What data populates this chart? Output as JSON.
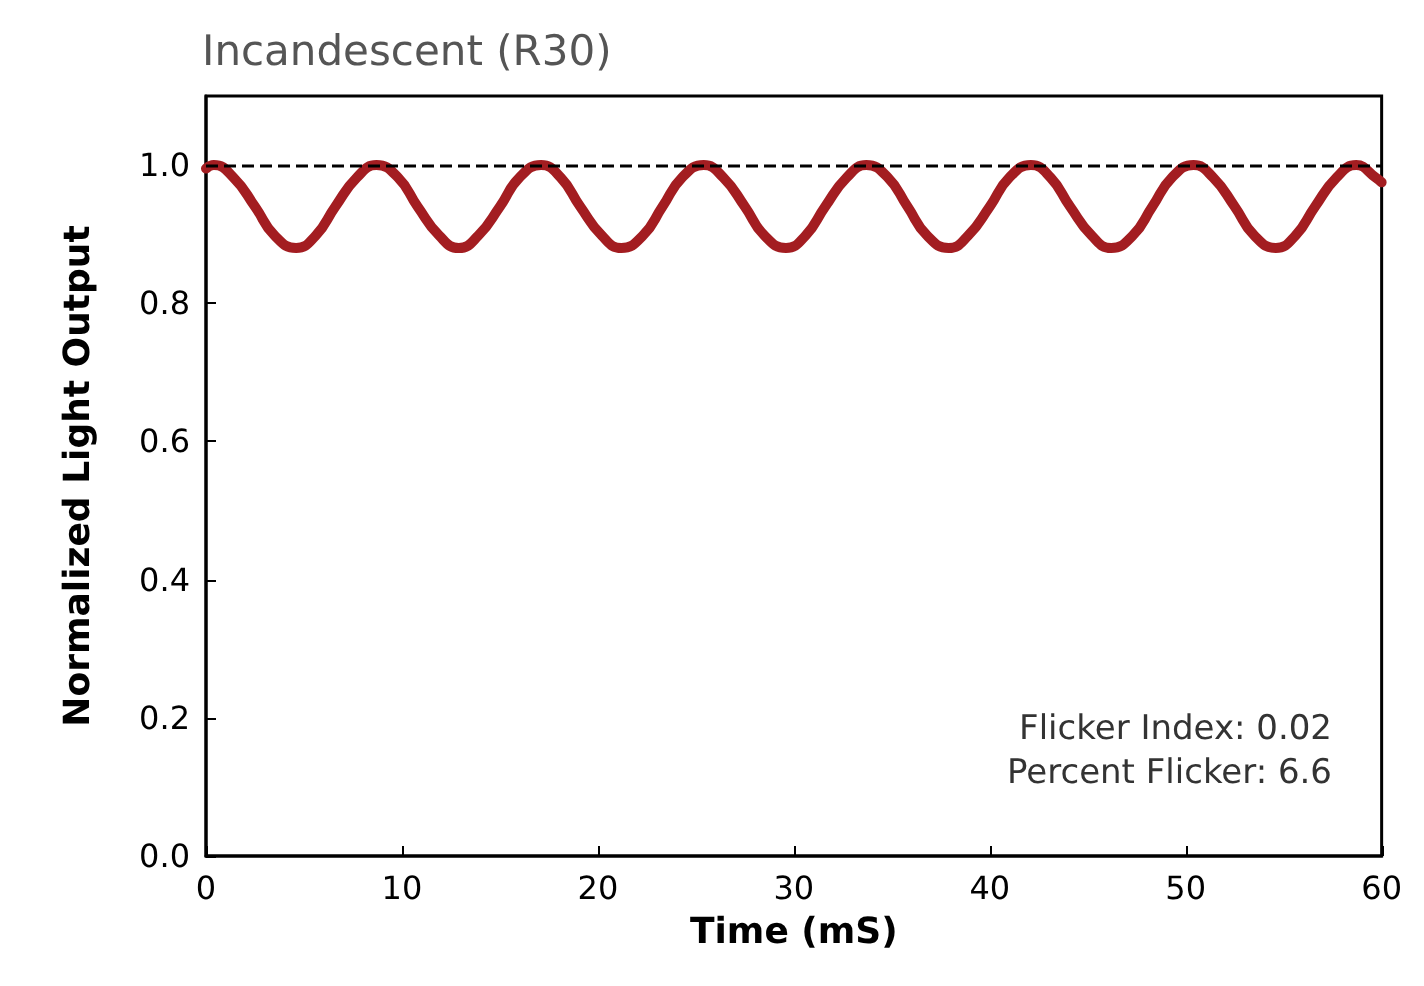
{
  "chart_data": {
    "type": "line",
    "title": "Incandescent (R30)",
    "xlabel": "Time (mS)",
    "ylabel": "Normalized Light Output",
    "x": [
      0,
      0.4,
      1.4,
      2.5,
      3.5,
      4.6,
      5.6,
      6.6,
      7.7,
      8.7,
      9.8,
      10.8,
      11.9,
      12.9,
      13.9,
      15.0,
      16.0,
      17.1,
      18.1,
      19.1,
      20.2,
      21.2,
      22.3,
      23.3,
      24.3,
      25.4,
      26.4,
      27.5,
      28.5,
      29.6,
      30.6,
      31.6,
      32.7,
      33.7,
      34.8,
      35.8,
      36.8,
      37.9,
      38.9,
      40.0,
      41.0,
      42.1,
      43.1,
      44.1,
      45.2,
      46.2,
      47.3,
      48.3,
      49.3,
      50.4,
      51.4,
      52.5,
      53.5,
      54.6,
      55.6,
      56.6,
      57.7,
      58.7,
      59.7,
      60
    ],
    "series": [
      {
        "color": "#a31d21",
        "values": [
          0.995,
          1.0,
          0.982,
          0.94,
          0.898,
          0.88,
          0.898,
          0.94,
          0.982,
          1.0,
          0.982,
          0.94,
          0.898,
          0.88,
          0.898,
          0.94,
          0.982,
          1.0,
          0.982,
          0.94,
          0.898,
          0.88,
          0.898,
          0.94,
          0.982,
          1.0,
          0.982,
          0.94,
          0.898,
          0.88,
          0.898,
          0.94,
          0.982,
          1.0,
          0.982,
          0.94,
          0.898,
          0.88,
          0.898,
          0.94,
          0.982,
          1.0,
          0.982,
          0.94,
          0.898,
          0.88,
          0.898,
          0.94,
          0.982,
          1.0,
          0.982,
          0.94,
          0.898,
          0.88,
          0.898,
          0.94,
          0.982,
          1.0,
          0.982,
          0.975
        ]
      }
    ],
    "xlim": [
      0,
      60
    ],
    "xticks": [
      0,
      10,
      20,
      30,
      40,
      50,
      60
    ],
    "ylim": [
      0,
      1.1
    ],
    "yticks": [
      {
        "value": 0,
        "label": "0.0"
      },
      {
        "value": 0.2,
        "label": "0.2"
      },
      {
        "value": 0.4,
        "label": "0.4"
      },
      {
        "value": 0.6,
        "label": "0.6"
      },
      {
        "value": 0.8,
        "label": "0.8"
      },
      {
        "value": 1.0,
        "label": "1.0"
      }
    ],
    "ref_lines": [
      {
        "axis": "y",
        "value": 1.0,
        "color": "#000000",
        "line_style": "dashed"
      }
    ],
    "annotations": [
      "Flicker Index: 0.02",
      "Percent Flicker: 6.6"
    ],
    "grid": false,
    "marker": "none",
    "line_style": "solid"
  }
}
